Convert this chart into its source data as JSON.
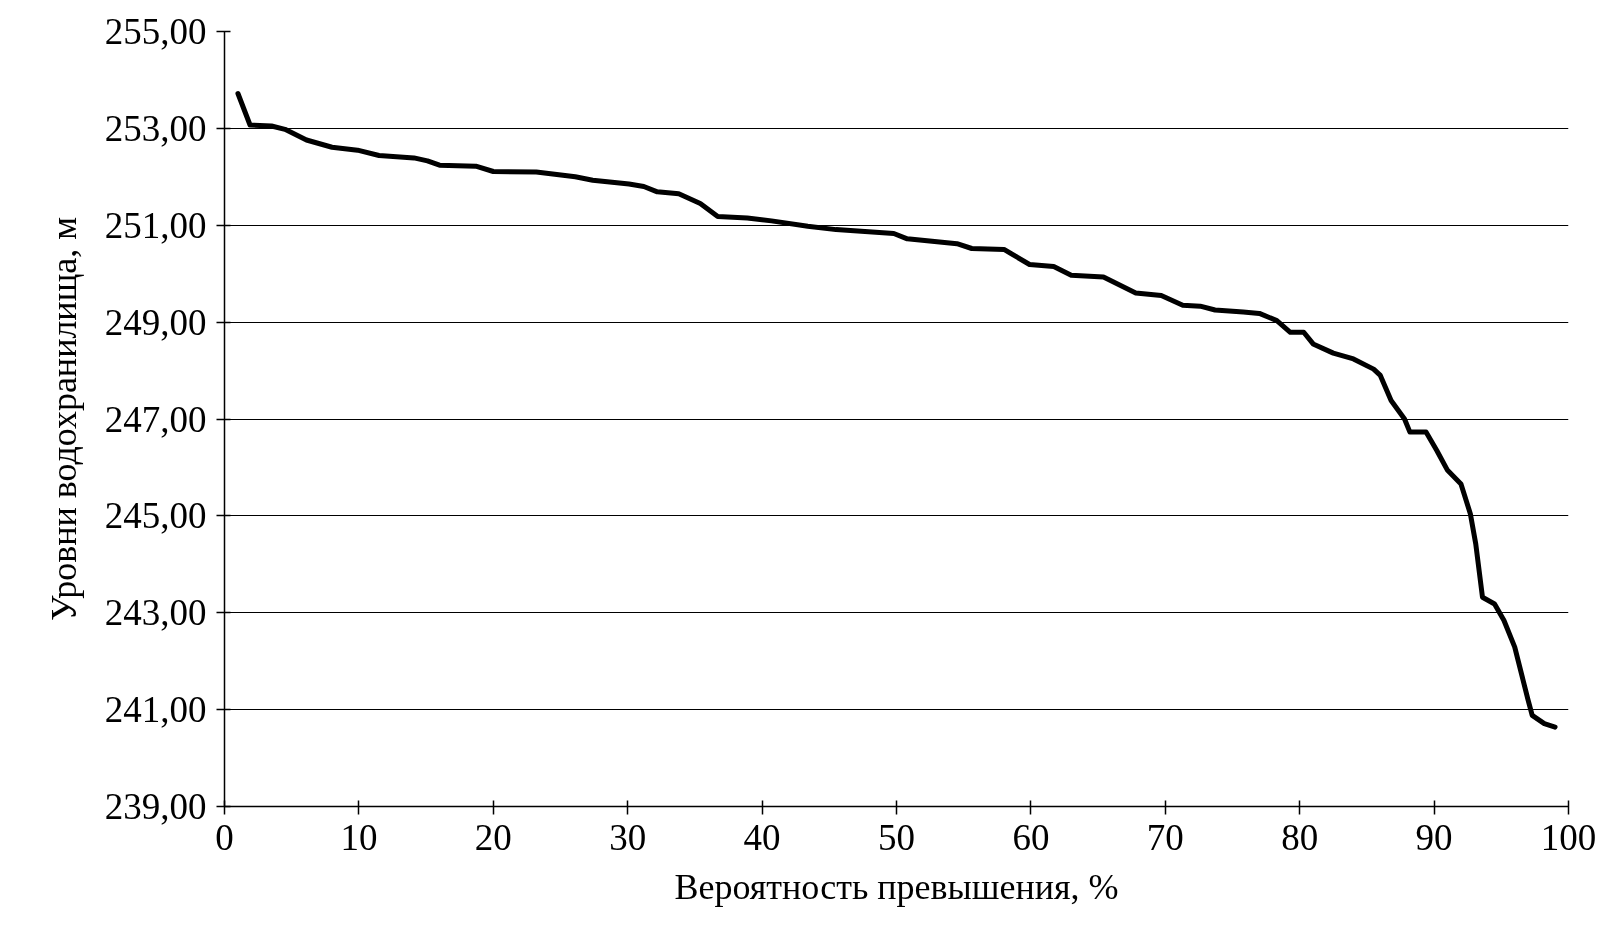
{
  "chart_data": {
    "type": "line",
    "xlabel": "Вероятность превышения, %",
    "ylabel": "Уровни водохранилища, м",
    "x": [
      1,
      1.9,
      3.5,
      4.5,
      6.1,
      8.0,
      9.9,
      11.5,
      14.1,
      15.1,
      16.0,
      18.7,
      20.0,
      23.2,
      26.1,
      27.4,
      30.1,
      31.2,
      32.2,
      33.8,
      35.4,
      36.7,
      38.9,
      40.7,
      43.4,
      45.5,
      49.8,
      50.8,
      54.5,
      55.6,
      58.0,
      59.9,
      61.7,
      63.0,
      65.4,
      67.8,
      69.7,
      71.3,
      72.6,
      73.7,
      75.8,
      77.0,
      78.3,
      79.3,
      80.3,
      81.0,
      82.5,
      84.0,
      85.5,
      86.0,
      86.8,
      87.8,
      88.2,
      89.4,
      90.2,
      91.0,
      92.0,
      92.7,
      93.1,
      93.6,
      94.5,
      95.2,
      96.0,
      97.0,
      97.3,
      98.2,
      99.0
    ],
    "values": [
      253.72,
      253.07,
      253.05,
      252.98,
      252.76,
      252.61,
      252.55,
      252.44,
      252.39,
      252.33,
      252.24,
      252.22,
      252.11,
      252.1,
      252.0,
      251.93,
      251.85,
      251.8,
      251.69,
      251.65,
      251.45,
      251.18,
      251.15,
      251.09,
      250.98,
      250.91,
      250.83,
      250.72,
      250.62,
      250.52,
      250.5,
      250.19,
      250.15,
      249.97,
      249.93,
      249.6,
      249.55,
      249.35,
      249.33,
      249.25,
      249.21,
      249.18,
      249.03,
      248.79,
      248.79,
      248.55,
      248.36,
      248.24,
      248.03,
      247.9,
      247.38,
      247.0,
      246.73,
      246.73,
      246.35,
      245.94,
      245.66,
      245.04,
      244.42,
      243.32,
      243.18,
      242.84,
      242.29,
      241.19,
      240.88,
      240.71,
      240.64
    ],
    "color": "#000000",
    "line_style": "solid",
    "xlim": [
      0,
      100
    ],
    "xticks": [
      0,
      10,
      20,
      30,
      40,
      50,
      60,
      70,
      80,
      90,
      100
    ],
    "ylim": [
      239,
      255
    ],
    "yticks": [
      {
        "value": 239,
        "label": "239,00"
      },
      {
        "value": 241,
        "label": "241,00"
      },
      {
        "value": 243,
        "label": "243,00"
      },
      {
        "value": 245,
        "label": "245,00"
      },
      {
        "value": 247,
        "label": "247,00"
      },
      {
        "value": 249,
        "label": "249,00"
      },
      {
        "value": 251,
        "label": "251,00"
      },
      {
        "value": 253,
        "label": "253,00"
      },
      {
        "value": 255,
        "label": "255,00"
      }
    ],
    "grid": "y"
  }
}
